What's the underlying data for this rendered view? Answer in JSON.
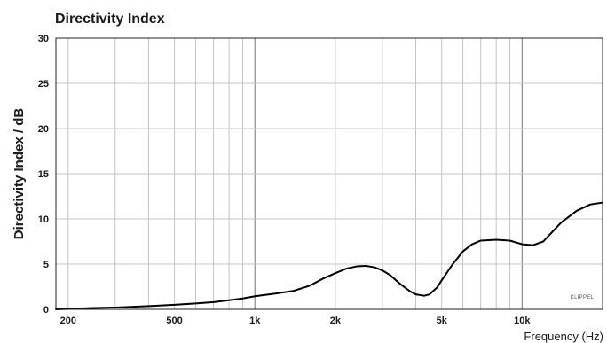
{
  "chart_data": {
    "type": "line",
    "title": "Directivity Index",
    "xlabel": "Frequency (Hz)",
    "ylabel": "Directivity Index / dB",
    "x_scale": "log",
    "xlim": [
      180,
      20000
    ],
    "ylim": [
      0,
      30
    ],
    "grid": true,
    "x_ticks": [
      {
        "value": 200,
        "label": "200"
      },
      {
        "value": 500,
        "label": "500"
      },
      {
        "value": 1000,
        "label": "1k"
      },
      {
        "value": 2000,
        "label": "2k"
      },
      {
        "value": 5000,
        "label": "5k"
      },
      {
        "value": 10000,
        "label": "10k"
      }
    ],
    "y_ticks": [
      {
        "value": 0,
        "label": "0"
      },
      {
        "value": 5,
        "label": "5"
      },
      {
        "value": 10,
        "label": "10"
      },
      {
        "value": 15,
        "label": "15"
      },
      {
        "value": 20,
        "label": "20"
      },
      {
        "value": 25,
        "label": "25"
      },
      {
        "value": 30,
        "label": "30"
      }
    ],
    "series": [
      {
        "color": "#000000",
        "x": [
          180,
          200,
          250,
          300,
          400,
          500,
          600,
          700,
          800,
          900,
          1000,
          1200,
          1400,
          1600,
          1800,
          2000,
          2200,
          2400,
          2600,
          2800,
          3000,
          3200,
          3500,
          3800,
          4000,
          4300,
          4500,
          4800,
          5000,
          5500,
          6000,
          6500,
          7000,
          8000,
          9000,
          10000,
          11000,
          12000,
          13000,
          14000,
          16000,
          18000,
          20000
        ],
        "y": [
          0.0,
          0.05,
          0.15,
          0.2,
          0.35,
          0.5,
          0.65,
          0.8,
          1.0,
          1.2,
          1.45,
          1.75,
          2.05,
          2.6,
          3.4,
          4.0,
          4.5,
          4.75,
          4.8,
          4.65,
          4.3,
          3.8,
          2.8,
          2.0,
          1.65,
          1.5,
          1.65,
          2.4,
          3.2,
          5.0,
          6.4,
          7.2,
          7.6,
          7.7,
          7.6,
          7.2,
          7.1,
          7.5,
          8.6,
          9.6,
          10.9,
          11.6,
          11.8
        ]
      }
    ],
    "watermark": "KLIPPEL"
  }
}
